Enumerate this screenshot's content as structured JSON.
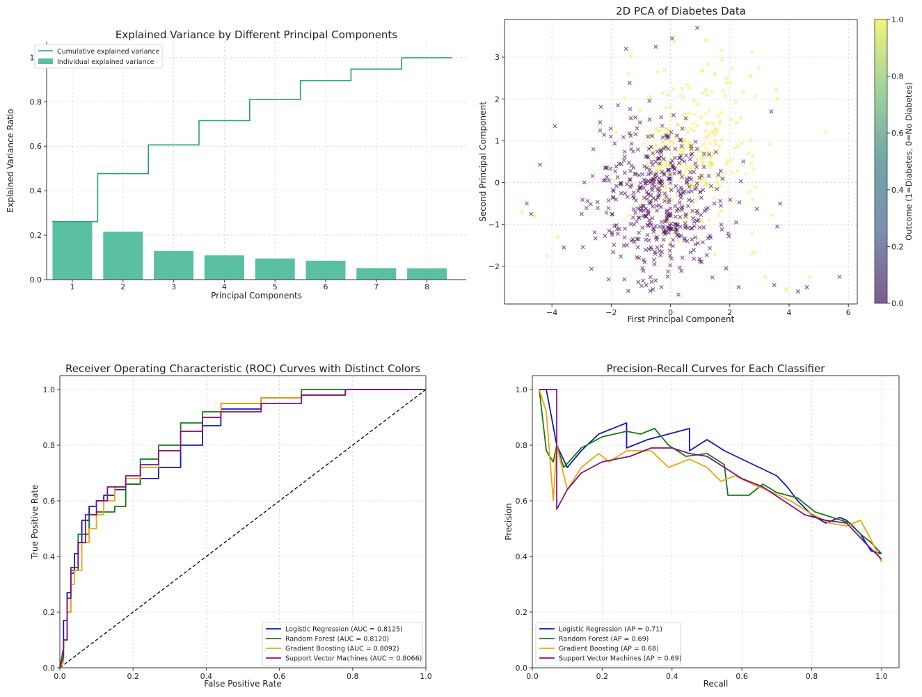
{
  "chart_data": [
    {
      "type": "bar",
      "title": "Explained Variance by Different Principal Components",
      "xlabel": "Principal Components",
      "ylabel": "Explained Variance Ratio",
      "categories": [
        "1",
        "2",
        "3",
        "4",
        "5",
        "6",
        "7",
        "8"
      ],
      "values": [
        0.261,
        0.216,
        0.129,
        0.109,
        0.095,
        0.085,
        0.052,
        0.051
      ],
      "cumulative": [
        0.261,
        0.477,
        0.606,
        0.715,
        0.81,
        0.895,
        0.947,
        0.998
      ],
      "ylim": [
        0,
        1.07
      ],
      "yticks": [
        "0.0",
        "0.2",
        "0.4",
        "0.6",
        "0.8",
        "1.0"
      ],
      "legend": [
        "Cumulative explained variance",
        "Individual explained variance"
      ],
      "legend_position": "top-left",
      "colors": {
        "bar": "#5bbfa4",
        "step": "#2a9d7c"
      },
      "grid": true
    },
    {
      "type": "scatter",
      "title": "2D PCA of Diabetes Data",
      "xlabel": "First Principal Component",
      "ylabel": "Second Principal Component",
      "xlim": [
        -5.6,
        6.3
      ],
      "ylim": [
        -2.9,
        3.9
      ],
      "xticks": [
        "−4",
        "−2",
        "0",
        "2",
        "4",
        "6"
      ],
      "yticks": [
        "−2",
        "−1",
        "0",
        "1",
        "2",
        "3"
      ],
      "colorbar_label": "Outcome (1=Diabetes, 0=No Diabetes)",
      "colorbar_ticks": [
        "0.0",
        "0.2",
        "0.4",
        "0.6",
        "0.8",
        "1.0"
      ],
      "marker": "x",
      "colors": {
        "class0": "#440154",
        "class1": "#f2e227"
      },
      "class0": {
        "n": 500,
        "center": [
          -0.4,
          -0.45
        ],
        "spread": [
          1.05,
          1.0
        ]
      },
      "class1": {
        "n": 268,
        "center": [
          0.75,
          0.8
        ],
        "spread": [
          1.15,
          1.05
        ]
      },
      "outliers": [
        [
          -5.0,
          -0.7
        ],
        [
          -4.85,
          -0.5
        ],
        [
          -4.7,
          -0.75
        ],
        [
          -4.6,
          -0.8
        ],
        [
          -4.4,
          0.43
        ],
        [
          -3.9,
          1.35
        ],
        [
          -3.8,
          -1.3
        ],
        [
          -3.6,
          -1.55
        ],
        [
          3.5,
          -2.45
        ],
        [
          3.9,
          -2.55
        ],
        [
          4.3,
          -2.6
        ],
        [
          4.6,
          -2.5
        ],
        [
          4.7,
          -2.25
        ],
        [
          5.7,
          -2.25
        ],
        [
          3.4,
          1.7
        ],
        [
          3.6,
          2.0
        ],
        [
          3.7,
          -0.5
        ],
        [
          3.6,
          -1.05
        ],
        [
          3.2,
          -2.25
        ],
        [
          2.3,
          -2.5
        ],
        [
          0.9,
          3.7
        ],
        [
          1.2,
          3.4
        ],
        [
          -0.5,
          3.25
        ],
        [
          -1.5,
          3.2
        ],
        [
          2.7,
          2.55
        ],
        [
          0.05,
          3.45
        ]
      ],
      "grid": true
    },
    {
      "type": "line",
      "title": "Receiver Operating Characteristic (ROC) Curves with Distinct Colors",
      "xlabel": "False Positive Rate",
      "ylabel": "True Positive Rate",
      "xlim": [
        0,
        1
      ],
      "ylim": [
        0,
        1.05
      ],
      "xticks": [
        "0.0",
        "0.2",
        "0.4",
        "0.6",
        "0.8",
        "1.0"
      ],
      "yticks": [
        "0.0",
        "0.2",
        "0.4",
        "0.6",
        "0.8",
        "1.0"
      ],
      "series": [
        {
          "name": "Logistic Regression (AUC = 0.8125)",
          "color": "#1515b5",
          "x": [
            0,
            0.01,
            0.01,
            0.02,
            0.02,
            0.03,
            0.03,
            0.04,
            0.04,
            0.05,
            0.05,
            0.06,
            0.06,
            0.08,
            0.08,
            0.1,
            0.1,
            0.12,
            0.12,
            0.15,
            0.15,
            0.18,
            0.18,
            0.22,
            0.22,
            0.27,
            0.27,
            0.33,
            0.33,
            0.39,
            0.39,
            0.44,
            0.44,
            0.55,
            0.55,
            0.66,
            0.66,
            0.78,
            0.78,
            0.88,
            0.88,
            1
          ],
          "y": [
            0,
            0.07,
            0.17,
            0.17,
            0.27,
            0.27,
            0.34,
            0.34,
            0.41,
            0.41,
            0.45,
            0.45,
            0.53,
            0.53,
            0.58,
            0.58,
            0.6,
            0.6,
            0.62,
            0.62,
            0.64,
            0.64,
            0.66,
            0.66,
            0.68,
            0.68,
            0.72,
            0.72,
            0.8,
            0.8,
            0.87,
            0.87,
            0.93,
            0.93,
            0.97,
            0.97,
            0.98,
            0.98,
            1,
            1,
            1,
            1
          ]
        },
        {
          "name": "Random Forest (AUC = 0.8120)",
          "color": "#137a13",
          "x": [
            0,
            0.01,
            0.01,
            0.02,
            0.02,
            0.03,
            0.03,
            0.05,
            0.05,
            0.08,
            0.08,
            0.1,
            0.1,
            0.15,
            0.15,
            0.18,
            0.18,
            0.22,
            0.22,
            0.27,
            0.27,
            0.33,
            0.33,
            0.39,
            0.39,
            0.44,
            0.44,
            0.55,
            0.55,
            0.66,
            0.66,
            0.78,
            0.78,
            0.88,
            0.88,
            1
          ],
          "y": [
            0,
            0.07,
            0.1,
            0.1,
            0.2,
            0.2,
            0.35,
            0.35,
            0.48,
            0.48,
            0.55,
            0.55,
            0.56,
            0.56,
            0.58,
            0.58,
            0.66,
            0.66,
            0.75,
            0.75,
            0.8,
            0.8,
            0.88,
            0.88,
            0.92,
            0.92,
            0.95,
            0.95,
            0.97,
            0.97,
            1,
            1,
            1,
            1,
            1,
            1
          ]
        },
        {
          "name": "Gradient Boosting (AUC = 0.8092)",
          "color": "#f2a20e",
          "x": [
            0,
            0.01,
            0.01,
            0.02,
            0.02,
            0.03,
            0.03,
            0.04,
            0.04,
            0.06,
            0.06,
            0.08,
            0.08,
            0.1,
            0.1,
            0.12,
            0.12,
            0.15,
            0.15,
            0.18,
            0.18,
            0.22,
            0.22,
            0.27,
            0.27,
            0.33,
            0.33,
            0.39,
            0.39,
            0.44,
            0.44,
            0.55,
            0.55,
            0.66,
            0.66,
            0.78,
            0.78,
            0.88,
            0.88,
            1
          ],
          "y": [
            0,
            0.02,
            0.1,
            0.1,
            0.2,
            0.2,
            0.3,
            0.3,
            0.35,
            0.35,
            0.45,
            0.45,
            0.5,
            0.5,
            0.55,
            0.55,
            0.6,
            0.6,
            0.65,
            0.65,
            0.68,
            0.68,
            0.72,
            0.72,
            0.78,
            0.78,
            0.85,
            0.85,
            0.9,
            0.9,
            0.95,
            0.95,
            0.97,
            0.97,
            0.98,
            0.98,
            1,
            1,
            1,
            1
          ]
        },
        {
          "name": "Support Vector Machines (AUC = 0.8066)",
          "color": "#7d117d",
          "x": [
            0,
            0.01,
            0.01,
            0.02,
            0.02,
            0.03,
            0.03,
            0.05,
            0.05,
            0.07,
            0.07,
            0.1,
            0.1,
            0.13,
            0.13,
            0.18,
            0.18,
            0.22,
            0.22,
            0.27,
            0.27,
            0.33,
            0.33,
            0.39,
            0.39,
            0.44,
            0.44,
            0.55,
            0.55,
            0.66,
            0.66,
            0.78,
            0.78,
            0.88,
            0.88,
            1
          ],
          "y": [
            0,
            0.04,
            0.1,
            0.1,
            0.25,
            0.25,
            0.36,
            0.36,
            0.45,
            0.45,
            0.55,
            0.55,
            0.6,
            0.6,
            0.65,
            0.65,
            0.69,
            0.69,
            0.73,
            0.73,
            0.78,
            0.78,
            0.85,
            0.85,
            0.9,
            0.9,
            0.92,
            0.92,
            0.95,
            0.95,
            0.98,
            0.98,
            1,
            1,
            1,
            1
          ]
        }
      ],
      "diagonal": true,
      "legend_position": "lower-right",
      "grid": true
    },
    {
      "type": "line",
      "title": "Precision-Recall Curves for Each Classifier",
      "xlabel": "Recall",
      "ylabel": "Precision",
      "xlim": [
        0,
        1.05
      ],
      "ylim": [
        0,
        1.05
      ],
      "xticks": [
        "0.0",
        "0.2",
        "0.4",
        "0.6",
        "0.8",
        "1.0"
      ],
      "yticks": [
        "0.0",
        "0.2",
        "0.4",
        "0.6",
        "0.8",
        "1.0"
      ],
      "series": [
        {
          "name": "Logistic Regression (AP = 0.71)",
          "color": "#1515b5",
          "x": [
            0.02,
            0.04,
            0.07,
            0.1,
            0.14,
            0.19,
            0.27,
            0.27,
            0.33,
            0.39,
            0.45,
            0.45,
            0.5,
            0.55,
            0.6,
            0.65,
            0.7,
            0.73,
            0.76,
            0.8,
            0.84,
            0.88,
            0.9,
            0.94,
            0.97,
            1
          ],
          "y": [
            1,
            1,
            0.8,
            0.72,
            0.78,
            0.84,
            0.88,
            0.79,
            0.82,
            0.84,
            0.86,
            0.78,
            0.82,
            0.78,
            0.75,
            0.72,
            0.69,
            0.65,
            0.6,
            0.55,
            0.52,
            0.54,
            0.53,
            0.48,
            0.42,
            0.41
          ]
        },
        {
          "name": "Random Forest (AP = 0.69)",
          "color": "#137a13",
          "x": [
            0.02,
            0.04,
            0.06,
            0.07,
            0.09,
            0.14,
            0.2,
            0.27,
            0.31,
            0.35,
            0.39,
            0.44,
            0.5,
            0.55,
            0.56,
            0.62,
            0.66,
            0.7,
            0.76,
            0.81,
            0.86,
            0.91,
            0.94,
            0.97,
            1
          ],
          "y": [
            1,
            0.78,
            0.74,
            0.8,
            0.72,
            0.79,
            0.83,
            0.85,
            0.84,
            0.86,
            0.8,
            0.76,
            0.77,
            0.73,
            0.62,
            0.62,
            0.66,
            0.63,
            0.61,
            0.56,
            0.54,
            0.52,
            0.48,
            0.45,
            0.41
          ]
        },
        {
          "name": "Gradient Boosting (AP = 0.68)",
          "color": "#f2a20e",
          "x": [
            0.02,
            0.04,
            0.06,
            0.07,
            0.1,
            0.14,
            0.19,
            0.22,
            0.27,
            0.34,
            0.39,
            0.45,
            0.5,
            0.54,
            0.58,
            0.63,
            0.69,
            0.74,
            0.79,
            0.85,
            0.9,
            0.94,
            0.97,
            1
          ],
          "y": [
            1,
            0.92,
            0.6,
            0.8,
            0.64,
            0.72,
            0.77,
            0.74,
            0.78,
            0.78,
            0.72,
            0.75,
            0.72,
            0.67,
            0.69,
            0.66,
            0.63,
            0.6,
            0.56,
            0.52,
            0.51,
            0.53,
            0.46,
            0.38
          ]
        },
        {
          "name": "Support Vector Machines (AP = 0.69)",
          "color": "#7d117d",
          "x": [
            0.02,
            0.04,
            0.06,
            0.07,
            0.07,
            0.1,
            0.14,
            0.2,
            0.28,
            0.34,
            0.4,
            0.45,
            0.5,
            0.55,
            0.6,
            0.66,
            0.72,
            0.78,
            0.84,
            0.9,
            0.93,
            0.96,
            1
          ],
          "y": [
            1,
            1,
            1,
            1,
            0.57,
            0.64,
            0.7,
            0.74,
            0.76,
            0.79,
            0.79,
            0.77,
            0.76,
            0.72,
            0.68,
            0.65,
            0.6,
            0.55,
            0.53,
            0.52,
            0.48,
            0.44,
            0.39
          ]
        }
      ],
      "legend_position": "lower-left",
      "grid": true
    }
  ]
}
